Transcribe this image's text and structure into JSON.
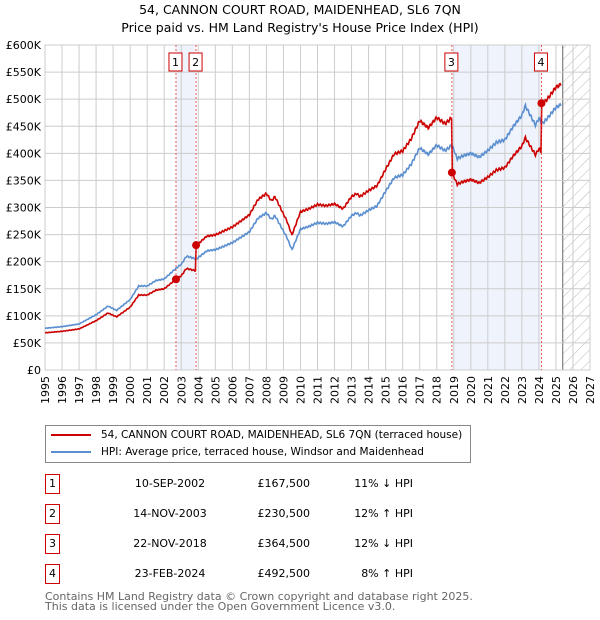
{
  "title": "54, CANNON COURT ROAD, MAIDENHEAD, SL6 7QN",
  "subtitle": "Price paid vs. HM Land Registry's House Price Index (HPI)",
  "chart_data": {
    "type": "line",
    "title": "54, CANNON COURT ROAD, MAIDENHEAD, SL6 7QN",
    "xlim": [
      1995,
      2027
    ],
    "ylim": [
      0,
      600000
    ],
    "yticks": [
      0,
      50000,
      100000,
      150000,
      200000,
      250000,
      300000,
      350000,
      400000,
      450000,
      500000,
      550000,
      600000
    ],
    "ytick_labels": [
      "£0",
      "£50K",
      "£100K",
      "£150K",
      "£200K",
      "£250K",
      "£300K",
      "£350K",
      "£400K",
      "£450K",
      "£500K",
      "£550K",
      "£600K"
    ],
    "xticks": [
      "1995",
      "1996",
      "1997",
      "1998",
      "1999",
      "2000",
      "2001",
      "2002",
      "2003",
      "2004",
      "2005",
      "2006",
      "2007",
      "2008",
      "2009",
      "2010",
      "2011",
      "2012",
      "2013",
      "2014",
      "2015",
      "2016",
      "2017",
      "2018",
      "2019",
      "2020",
      "2021",
      "2022",
      "2023",
      "2024",
      "2025",
      "2026",
      "2027"
    ],
    "forecast_start": 2025.4,
    "series": [
      {
        "name": "54, CANNON COURT ROAD, MAIDENHEAD, SL6 7QN (terraced house)",
        "color": "#cc0000",
        "derived_from": "HPI scaled by sale ratios"
      },
      {
        "name": "HPI: Average price, terraced house, Windsor and Maidenhead",
        "color": "#5b8fd0",
        "x": [
          1995,
          1996,
          1997,
          1998,
          1998.7,
          1999.2,
          2000,
          2000.5,
          2001,
          2001.5,
          2002,
          2002.7,
          2003,
          2003.3,
          2003.9,
          2004.5,
          2005,
          2006,
          2007,
          2007.5,
          2008,
          2008.3,
          2008.5,
          2009.2,
          2009.5,
          2010,
          2010.5,
          2011,
          2011.5,
          2012,
          2012.5,
          2013,
          2013.3,
          2013.5,
          2014,
          2014.5,
          2015,
          2015.5,
          2016,
          2016.5,
          2017,
          2017.5,
          2018,
          2018.5,
          2018.9,
          2019.2,
          2019.5,
          2020,
          2020.5,
          2021,
          2021.5,
          2022,
          2022.5,
          2023,
          2023.2,
          2023.5,
          2023.8,
          2024,
          2024.2,
          2024.5,
          2025,
          2025.3
        ],
        "y": [
          77000,
          80000,
          85000,
          102000,
          118000,
          110000,
          130000,
          155000,
          155000,
          165000,
          168000,
          188000,
          195000,
          210000,
          205000,
          220000,
          222000,
          235000,
          255000,
          280000,
          290000,
          278000,
          285000,
          245000,
          222000,
          260000,
          265000,
          272000,
          270000,
          273000,
          265000,
          285000,
          290000,
          285000,
          295000,
          303000,
          330000,
          355000,
          360000,
          380000,
          410000,
          398000,
          415000,
          405000,
          415000,
          390000,
          395000,
          400000,
          393000,
          405000,
          420000,
          425000,
          450000,
          470000,
          488000,
          470000,
          452000,
          465000,
          455000,
          465000,
          485000,
          490000
        ]
      }
    ],
    "sales": [
      {
        "id": "1",
        "x": 2002.69,
        "date": "10-SEP-2002",
        "price": 167500,
        "price_label": "£167,500",
        "hpi_label": "11% ↓ HPI"
      },
      {
        "id": "2",
        "x": 2003.87,
        "date": "14-NOV-2003",
        "price": 230500,
        "price_label": "£230,500",
        "hpi_label": "12% ↑ HPI"
      },
      {
        "id": "3",
        "x": 2018.89,
        "date": "22-NOV-2018",
        "price": 364500,
        "price_label": "£364,500",
        "hpi_label": "12% ↓ HPI"
      },
      {
        "id": "4",
        "x": 2024.15,
        "date": "23-FEB-2024",
        "price": 492500,
        "price_label": "£492,500",
        "hpi_label": "8% ↑ HPI"
      }
    ]
  },
  "legend": {
    "property": "54, CANNON COURT ROAD, MAIDENHEAD, SL6 7QN (terraced house)",
    "hpi": "HPI: Average price, terraced house, Windsor and Maidenhead"
  },
  "footer": [
    "Contains HM Land Registry data © Crown copyright and database right 2025.",
    "This data is licensed under the Open Government Licence v3.0."
  ]
}
